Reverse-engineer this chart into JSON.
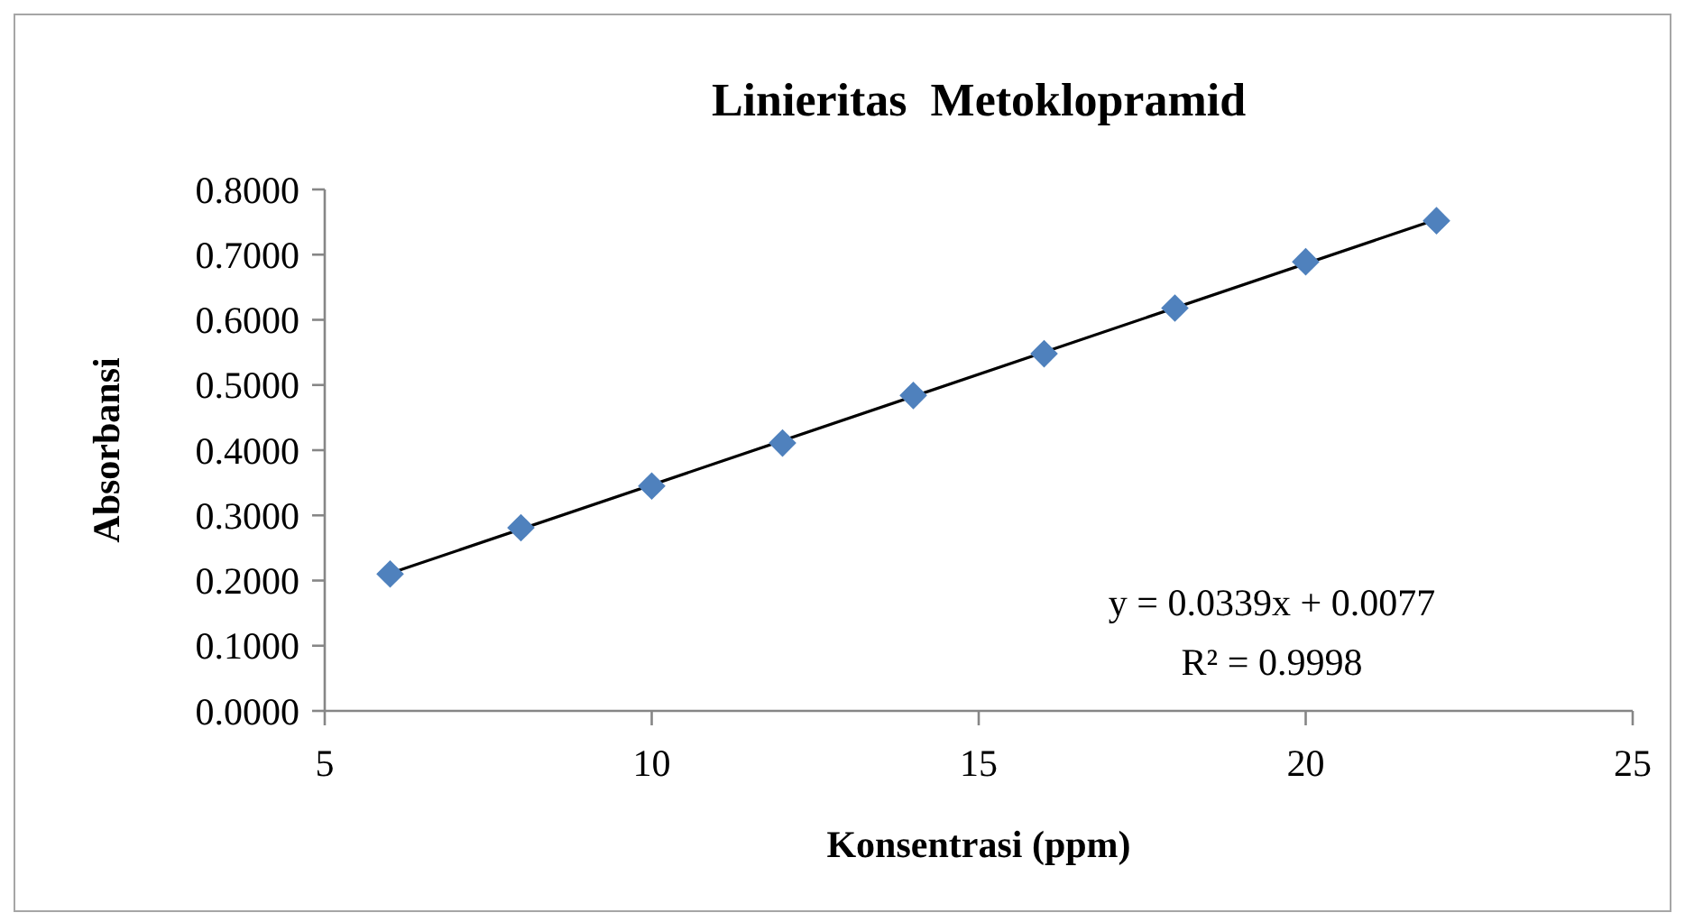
{
  "chart_data": {
    "type": "scatter",
    "title": "Linieritas  Metoklopramid",
    "xlabel": "Konsentrasi (ppm)",
    "ylabel": "Absorbansi",
    "x": [
      6,
      8,
      10,
      12,
      14,
      16,
      18,
      20,
      22
    ],
    "series": [
      {
        "color": "#4f81bd",
        "marker": "diamond",
        "values": [
          0.21,
          0.281,
          0.345,
          0.411,
          0.484,
          0.548,
          0.618,
          0.689,
          0.752
        ]
      },
      {
        "type": "line",
        "color": "#000000",
        "marker": "none",
        "x": [
          6,
          22
        ],
        "values": [
          0.211,
          0.754
        ]
      }
    ],
    "xlim": [
      5,
      25
    ],
    "xticks": [
      5,
      10,
      15,
      20,
      25
    ],
    "ylim": [
      0,
      0.8
    ],
    "yticks": [
      {
        "value": 0,
        "label": "0.0000"
      },
      {
        "value": 0.1,
        "label": "0.1000"
      },
      {
        "value": 0.2,
        "label": "0.2000"
      },
      {
        "value": 0.3,
        "label": "0.3000"
      },
      {
        "value": 0.4,
        "label": "0.4000"
      },
      {
        "value": 0.5,
        "label": "0.5000"
      },
      {
        "value": 0.6,
        "label": "0.6000"
      },
      {
        "value": 0.7,
        "label": "0.7000"
      },
      {
        "value": 0.8,
        "label": "0.8000"
      }
    ],
    "grid": false,
    "annotations": [
      "y = 0.0339x + 0.0077",
      "R² = 0.9998"
    ]
  }
}
